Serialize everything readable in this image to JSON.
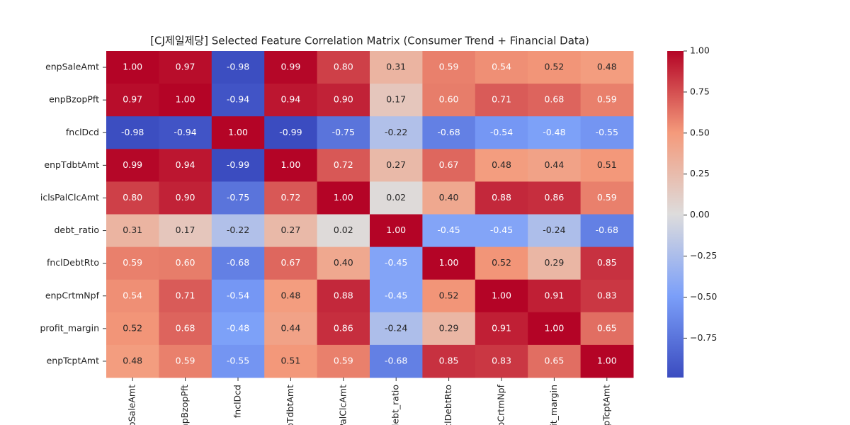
{
  "chart_data": {
    "type": "heatmap",
    "title": "[CJ제일제당] Selected Feature Correlation Matrix (Consumer Trend + Financial Data)",
    "categories": [
      "enpSaleAmt",
      "enpBzopPft",
      "fnclDcd",
      "enpTdbtAmt",
      "iclsPalClcAmt",
      "debt_ratio",
      "fnclDebtRto",
      "enpCrtmNpf",
      "profit_margin",
      "enpTcptAmt"
    ],
    "values": [
      [
        1.0,
        0.97,
        -0.98,
        0.99,
        0.8,
        0.31,
        0.59,
        0.54,
        0.52,
        0.48
      ],
      [
        0.97,
        1.0,
        -0.94,
        0.94,
        0.9,
        0.17,
        0.6,
        0.71,
        0.68,
        0.59
      ],
      [
        -0.98,
        -0.94,
        1.0,
        -0.99,
        -0.75,
        -0.22,
        -0.68,
        -0.54,
        -0.48,
        -0.55
      ],
      [
        0.99,
        0.94,
        -0.99,
        1.0,
        0.72,
        0.27,
        0.67,
        0.48,
        0.44,
        0.51
      ],
      [
        0.8,
        0.9,
        -0.75,
        0.72,
        1.0,
        0.02,
        0.4,
        0.88,
        0.86,
        0.59
      ],
      [
        0.31,
        0.17,
        -0.22,
        0.27,
        0.02,
        1.0,
        -0.45,
        -0.45,
        -0.24,
        -0.68
      ],
      [
        0.59,
        0.6,
        -0.68,
        0.67,
        0.4,
        -0.45,
        1.0,
        0.52,
        0.29,
        0.85
      ],
      [
        0.54,
        0.71,
        -0.54,
        0.48,
        0.88,
        -0.45,
        0.52,
        1.0,
        0.91,
        0.83
      ],
      [
        0.52,
        0.68,
        -0.48,
        0.44,
        0.86,
        -0.24,
        0.29,
        0.91,
        1.0,
        0.65
      ],
      [
        0.48,
        0.59,
        -0.55,
        0.51,
        0.59,
        -0.68,
        0.85,
        0.83,
        0.65,
        1.0
      ]
    ],
    "value_labels": [
      [
        "1.00",
        "0.97",
        "-0.98",
        "0.99",
        "0.80",
        "0.31",
        "0.59",
        "0.54",
        "0.52",
        "0.48"
      ],
      [
        "0.97",
        "1.00",
        "-0.94",
        "0.94",
        "0.90",
        "0.17",
        "0.60",
        "0.71",
        "0.68",
        "0.59"
      ],
      [
        "-0.98",
        "-0.94",
        "1.00",
        "-0.99",
        "-0.75",
        "-0.22",
        "-0.68",
        "-0.54",
        "-0.48",
        "-0.55"
      ],
      [
        "0.99",
        "0.94",
        "-0.99",
        "1.00",
        "0.72",
        "0.27",
        "0.67",
        "0.48",
        "0.44",
        "0.51"
      ],
      [
        "0.80",
        "0.90",
        "-0.75",
        "0.72",
        "1.00",
        "0.02",
        "0.40",
        "0.88",
        "0.86",
        "0.59"
      ],
      [
        "0.31",
        "0.17",
        "-0.22",
        "0.27",
        "0.02",
        "1.00",
        "-0.45",
        "-0.45",
        "-0.24",
        "-0.68"
      ],
      [
        "0.59",
        "0.60",
        "-0.68",
        "0.67",
        "0.40",
        "-0.45",
        "1.00",
        "0.52",
        "0.29",
        "0.85"
      ],
      [
        "0.54",
        "0.71",
        "-0.54",
        "0.48",
        "0.88",
        "-0.45",
        "0.52",
        "1.00",
        "0.91",
        "0.83"
      ],
      [
        "0.52",
        "0.68",
        "-0.48",
        "0.44",
        "0.86",
        "-0.24",
        "0.29",
        "0.91",
        "1.00",
        "0.65"
      ],
      [
        "0.48",
        "0.59",
        "-0.55",
        "0.51",
        "0.59",
        "-0.68",
        "0.85",
        "0.83",
        "0.65",
        "1.00"
      ]
    ],
    "colors": [
      "#3b4cc0",
      "#7b9ff9",
      "#dddcdc",
      "#f49a7b",
      "#b40426"
    ],
    "clim": [
      -0.99,
      1.0
    ],
    "cticks": [
      {
        "value": 1.0,
        "label": "1.00"
      },
      {
        "value": 0.75,
        "label": "0.75"
      },
      {
        "value": 0.5,
        "label": "0.50"
      },
      {
        "value": 0.25,
        "label": "0.25"
      },
      {
        "value": 0.0,
        "label": "0.00"
      },
      {
        "value": -0.25,
        "label": "−0.25"
      },
      {
        "value": -0.5,
        "label": "−0.50"
      },
      {
        "value": -0.75,
        "label": "−0.75"
      }
    ]
  }
}
